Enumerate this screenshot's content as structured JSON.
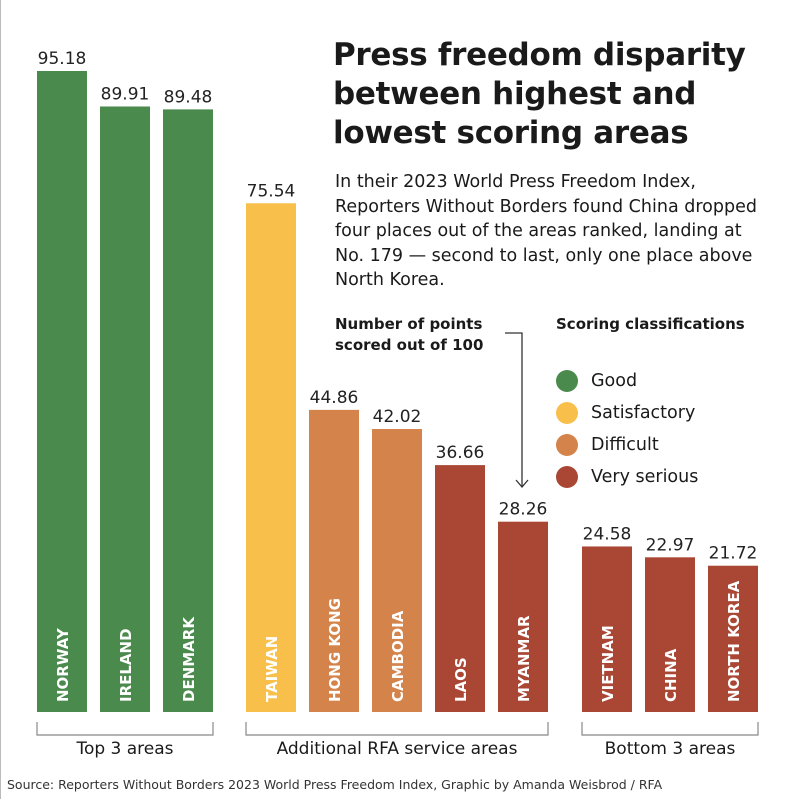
{
  "title": "Press freedom disparity between highest and lowest scoring areas",
  "subtitle": "In their 2023 World Press Freedom Index, Reporters Without Borders found China dropped four places out of the areas ranked, landing at No. 179 — second to last, only one place above North Korea.",
  "annotation": "Number of points scored out of 100",
  "source": "Source: Reporters Without Borders 2023 World Press Freedom Index, Graphic by Amanda Weisbrod / RFA",
  "colors": {
    "Good": "#4a8a4d",
    "Satisfactory": "#f8c04b",
    "Difficult": "#d4834a",
    "Very serious": "#a94634"
  },
  "chart_data": {
    "type": "bar",
    "title": "Press freedom disparity between highest and lowest scoring areas",
    "ylim": [
      0,
      100
    ],
    "grid": false,
    "legend_title": "Scoring classifications",
    "legend_position": "right",
    "legend": [
      "Good",
      "Satisfactory",
      "Difficult",
      "Very serious"
    ],
    "groups": [
      {
        "label": "Top 3 areas",
        "bars": [
          {
            "category": "NORWAY",
            "value": 95.18,
            "class": "Good"
          },
          {
            "category": "IRELAND",
            "value": 89.91,
            "class": "Good"
          },
          {
            "category": "DENMARK",
            "value": 89.48,
            "class": "Good"
          }
        ]
      },
      {
        "label": "Additional RFA service areas",
        "bars": [
          {
            "category": "TAIWAN",
            "value": 75.54,
            "class": "Satisfactory"
          },
          {
            "category": "HONG KONG",
            "value": 44.86,
            "class": "Difficult"
          },
          {
            "category": "CAMBODIA",
            "value": 42.02,
            "class": "Difficult"
          },
          {
            "category": "LAOS",
            "value": 36.66,
            "class": "Very serious"
          },
          {
            "category": "MYANMAR",
            "value": 28.26,
            "class": "Very serious"
          }
        ]
      },
      {
        "label": "Bottom 3 areas",
        "bars": [
          {
            "category": "VIETNAM",
            "value": 24.58,
            "class": "Very serious"
          },
          {
            "category": "CHINA",
            "value": 22.97,
            "class": "Very serious"
          },
          {
            "category": "NORTH KOREA",
            "value": 21.72,
            "class": "Very serious"
          }
        ]
      }
    ]
  }
}
